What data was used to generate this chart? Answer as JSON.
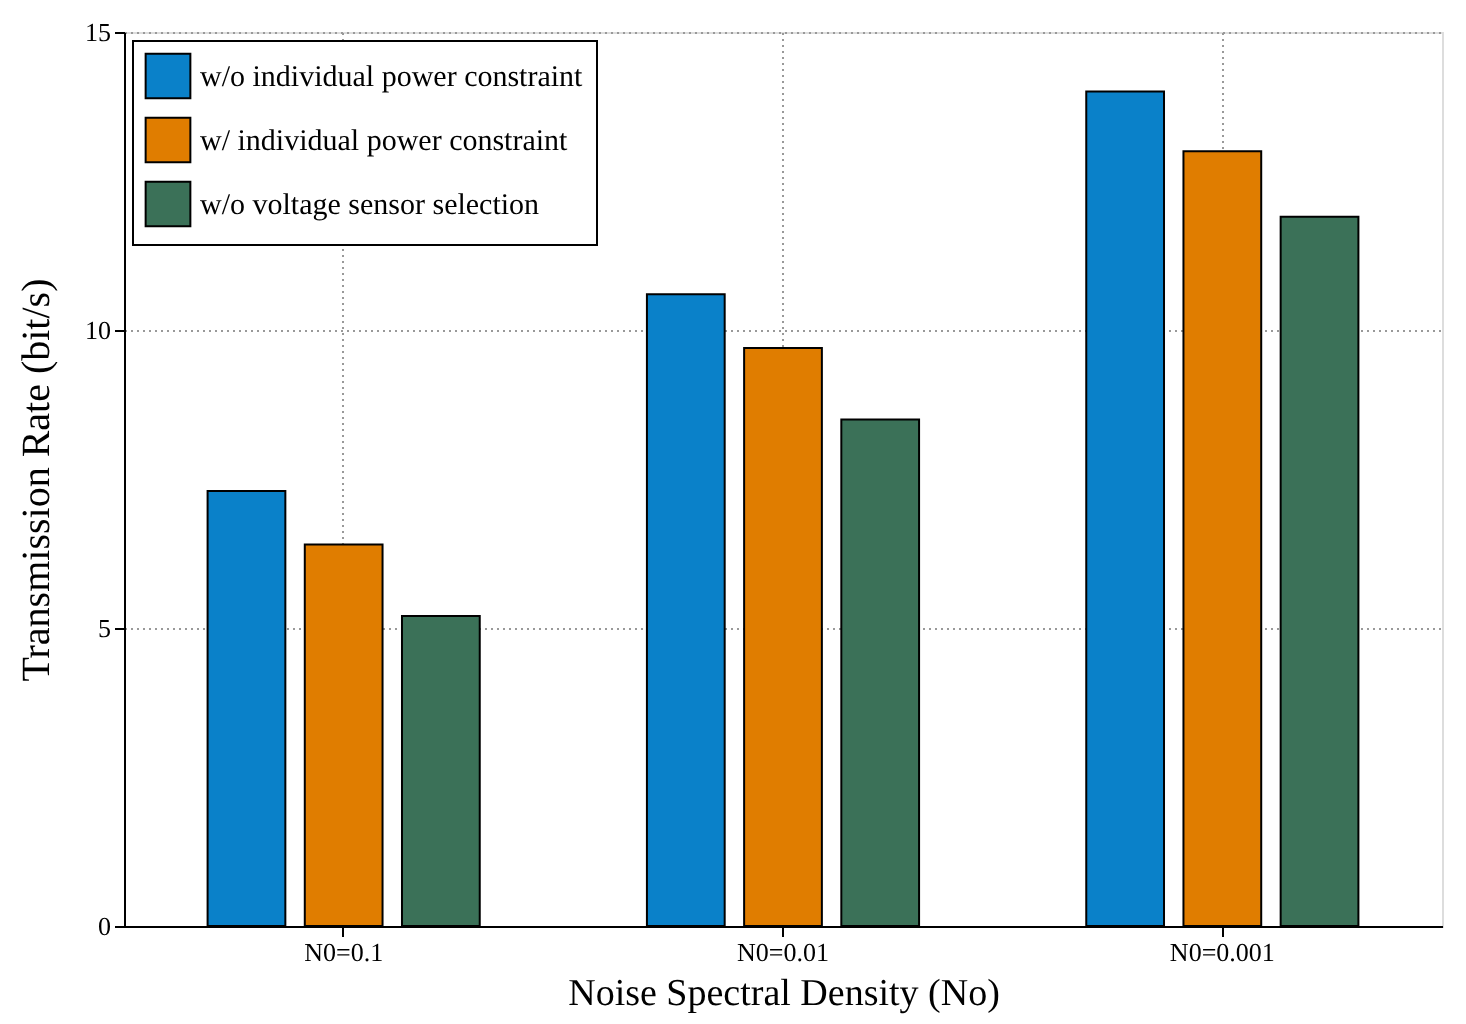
{
  "chart_data": {
    "type": "bar",
    "xlabel": "Noise Spectral Density (No)",
    "ylabel": "Transmission Rate (bit/s)",
    "categories": [
      "N0=0.1",
      "N0=0.01",
      "N0=0.001"
    ],
    "series": [
      {
        "name": "w/o individual power constraint",
        "color": "#0a81c9",
        "values": [
          7.3,
          10.6,
          14.0
        ]
      },
      {
        "name": "w/ individual power constraint",
        "color": "#e07d00",
        "values": [
          6.4,
          9.7,
          13.0
        ]
      },
      {
        "name": "w/o voltage sensor selection",
        "color": "#3b7158",
        "values": [
          5.2,
          8.5,
          11.9
        ]
      }
    ],
    "ylim": [
      0,
      15
    ],
    "yticks": [
      0,
      5,
      10,
      15
    ],
    "grid": true,
    "legend": "top left"
  }
}
